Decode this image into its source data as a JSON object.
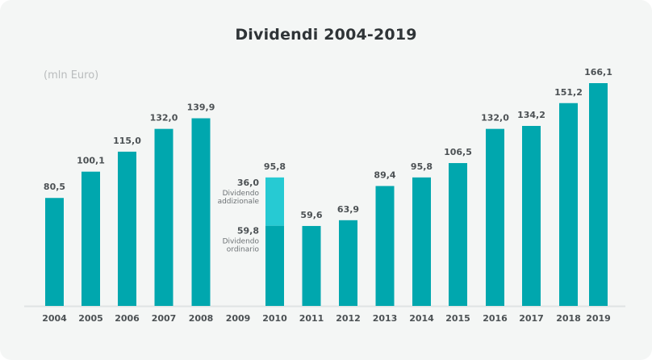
{
  "chart_data": {
    "type": "bar",
    "title": "Dividendi 2004-2019",
    "unit_label": "(mln Euro)",
    "xlabel": "",
    "ylabel": "",
    "ylim": [
      0,
      170
    ],
    "grid": false,
    "legend": "none",
    "categories": [
      "2004",
      "2005",
      "2006",
      "2007",
      "2008",
      "2009",
      "2010",
      "2011",
      "2012",
      "2013",
      "2014",
      "2015",
      "2016",
      "2017",
      "2018",
      "2019"
    ],
    "values": [
      80.5,
      100.1,
      115.0,
      132.0,
      139.9,
      null,
      95.8,
      59.6,
      63.9,
      89.4,
      95.8,
      106.5,
      132.0,
      134.2,
      151.2,
      166.1
    ],
    "labels": [
      "80,5",
      "100,1",
      "115,0",
      "132,0",
      "139,9",
      "",
      "95,8",
      "59,6",
      "63,9",
      "89,4",
      "95,8",
      "106,5",
      "132,0",
      "134,2",
      "151,2",
      "166,1"
    ],
    "stacked_2010": {
      "category": "2010",
      "segments": [
        {
          "name": "Dividendo ordinario",
          "value": 59.8,
          "label": "59,8",
          "line1": "Dividendo",
          "line2": "ordinario",
          "color": "#00a7ae"
        },
        {
          "name": "Dividendo addizionale",
          "value": 36.0,
          "label": "36,0",
          "line1": "Dividendo",
          "line2": "addizionale",
          "color": "#26cad3"
        }
      ]
    },
    "colors": {
      "bar": "#00a7ae",
      "bar_additional": "#26cad3",
      "axis": "#dfe3e3",
      "text": "#4c5154"
    }
  }
}
